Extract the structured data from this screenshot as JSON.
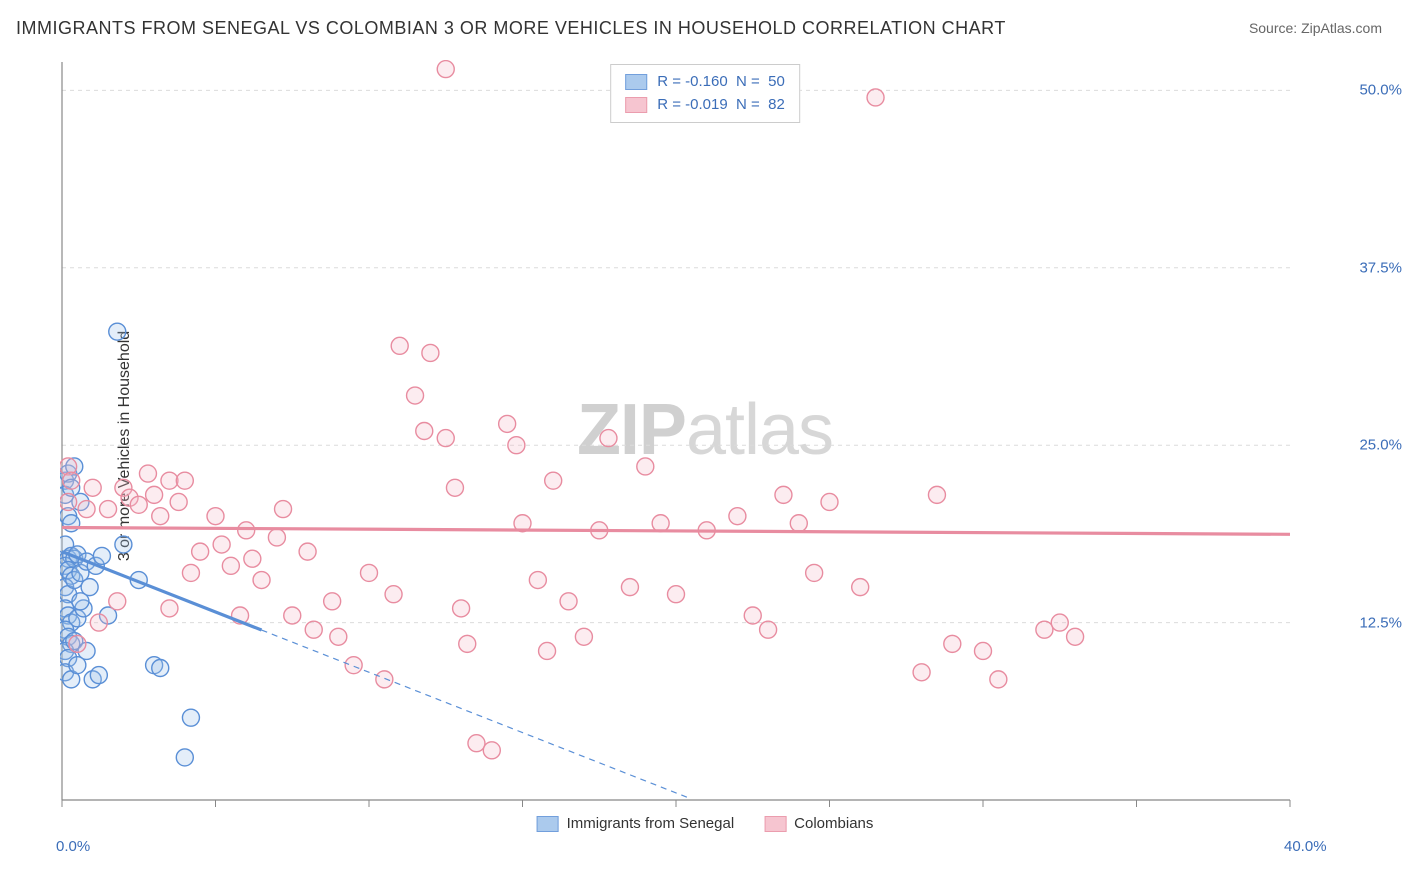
{
  "title": "IMMIGRANTS FROM SENEGAL VS COLOMBIAN 3 OR MORE VEHICLES IN HOUSEHOLD CORRELATION CHART",
  "source_prefix": "Source: ",
  "source_name": "ZipAtlas.com",
  "ylabel": "3 or more Vehicles in Household",
  "watermark": {
    "part1": "ZIP",
    "part2": "atlas"
  },
  "chart": {
    "type": "scatter",
    "xlim": [
      0,
      40
    ],
    "ylim": [
      0,
      52
    ],
    "x_ticks": [
      {
        "v": 0,
        "l": "0.0%"
      },
      {
        "v": 40,
        "l": "40.0%"
      }
    ],
    "y_ticks": [
      {
        "v": 12.5,
        "l": "12.5%"
      },
      {
        "v": 25,
        "l": "25.0%"
      },
      {
        "v": 37.5,
        "l": "37.5%"
      },
      {
        "v": 50,
        "l": "50.0%"
      }
    ],
    "grid_color": "#dcdcdc",
    "axis_color": "#888888",
    "background_color": "#ffffff",
    "marker_radius": 8.5,
    "marker_stroke_width": 1.4,
    "marker_fill_opacity": 0.28,
    "series": [
      {
        "name": "Immigrants from Senegal",
        "color_stroke": "#5a8fd6",
        "color_fill": "#9dc1ea",
        "R": "-0.160",
        "N": "50",
        "trend": {
          "solid_from_x": 0,
          "solid_to_x": 6.5,
          "y0": 17.5,
          "slope": -0.85,
          "dash_to_x": 20.5
        },
        "points": [
          [
            0.1,
            22.5
          ],
          [
            0.1,
            21.5
          ],
          [
            0.2,
            23.0
          ],
          [
            0.2,
            20.0
          ],
          [
            0.3,
            19.5
          ],
          [
            0.3,
            22.0
          ],
          [
            0.1,
            18.0
          ],
          [
            0.2,
            17.0
          ],
          [
            0.3,
            17.2
          ],
          [
            0.1,
            16.5
          ],
          [
            0.4,
            17.0
          ],
          [
            0.5,
            17.3
          ],
          [
            0.2,
            16.2
          ],
          [
            0.3,
            15.8
          ],
          [
            0.1,
            15.0
          ],
          [
            0.2,
            14.5
          ],
          [
            0.4,
            15.5
          ],
          [
            0.6,
            16.0
          ],
          [
            0.8,
            16.8
          ],
          [
            0.1,
            13.5
          ],
          [
            0.2,
            13.0
          ],
          [
            0.3,
            12.5
          ],
          [
            0.1,
            12.0
          ],
          [
            0.2,
            11.5
          ],
          [
            0.3,
            11.0
          ],
          [
            0.5,
            12.8
          ],
          [
            0.7,
            13.5
          ],
          [
            0.1,
            10.5
          ],
          [
            0.2,
            10.0
          ],
          [
            0.4,
            11.2
          ],
          [
            0.6,
            14.0
          ],
          [
            0.9,
            15.0
          ],
          [
            1.1,
            16.5
          ],
          [
            1.3,
            17.2
          ],
          [
            0.1,
            9.0
          ],
          [
            0.3,
            8.5
          ],
          [
            0.5,
            9.5
          ],
          [
            0.8,
            10.5
          ],
          [
            1.0,
            8.5
          ],
          [
            1.2,
            8.8
          ],
          [
            2.0,
            18.0
          ],
          [
            1.5,
            13.0
          ],
          [
            2.5,
            15.5
          ],
          [
            3.0,
            9.5
          ],
          [
            3.2,
            9.3
          ],
          [
            4.2,
            5.8
          ],
          [
            4.0,
            3.0
          ],
          [
            1.8,
            33.0
          ],
          [
            0.4,
            23.5
          ],
          [
            0.6,
            21.0
          ]
        ]
      },
      {
        "name": "Colombians",
        "color_stroke": "#e88ca0",
        "color_fill": "#f5bcc8",
        "R": "-0.019",
        "N": "82",
        "trend": {
          "solid_from_x": 0,
          "solid_to_x": 40,
          "y0": 19.2,
          "slope": -0.012,
          "dash_to_x": 40
        },
        "points": [
          [
            0.2,
            23.5
          ],
          [
            0.3,
            22.5
          ],
          [
            0.2,
            21.0
          ],
          [
            0.8,
            20.5
          ],
          [
            1.0,
            22.0
          ],
          [
            1.5,
            20.5
          ],
          [
            2.0,
            22.0
          ],
          [
            2.2,
            21.3
          ],
          [
            2.5,
            20.8
          ],
          [
            2.8,
            23.0
          ],
          [
            3.0,
            21.5
          ],
          [
            3.2,
            20.0
          ],
          [
            3.5,
            22.5
          ],
          [
            3.8,
            21.0
          ],
          [
            4.0,
            22.5
          ],
          [
            4.2,
            16.0
          ],
          [
            4.5,
            17.5
          ],
          [
            5.0,
            20.0
          ],
          [
            5.2,
            18.0
          ],
          [
            5.5,
            16.5
          ],
          [
            6.0,
            19.0
          ],
          [
            6.2,
            17.0
          ],
          [
            6.5,
            15.5
          ],
          [
            7.0,
            18.5
          ],
          [
            7.5,
            13.0
          ],
          [
            8.0,
            17.5
          ],
          [
            8.2,
            12.0
          ],
          [
            8.8,
            14.0
          ],
          [
            9.0,
            11.5
          ],
          [
            9.5,
            9.5
          ],
          [
            10.0,
            16.0
          ],
          [
            10.5,
            8.5
          ],
          [
            10.8,
            14.5
          ],
          [
            11.0,
            32.0
          ],
          [
            11.5,
            28.5
          ],
          [
            11.8,
            26.0
          ],
          [
            12.0,
            31.5
          ],
          [
            12.5,
            25.5
          ],
          [
            12.8,
            22.0
          ],
          [
            12.5,
            51.5
          ],
          [
            13.0,
            13.5
          ],
          [
            13.2,
            11.0
          ],
          [
            13.5,
            4.0
          ],
          [
            14.0,
            3.5
          ],
          [
            14.5,
            26.5
          ],
          [
            14.8,
            25.0
          ],
          [
            15.0,
            19.5
          ],
          [
            15.5,
            15.5
          ],
          [
            15.8,
            10.5
          ],
          [
            16.0,
            22.5
          ],
          [
            16.5,
            14.0
          ],
          [
            17.0,
            11.5
          ],
          [
            17.5,
            19.0
          ],
          [
            17.8,
            25.5
          ],
          [
            18.5,
            15.0
          ],
          [
            19.0,
            23.5
          ],
          [
            19.5,
            19.5
          ],
          [
            20.0,
            14.5
          ],
          [
            21.0,
            19.0
          ],
          [
            22.0,
            20.0
          ],
          [
            22.5,
            13.0
          ],
          [
            23.0,
            12.0
          ],
          [
            23.5,
            21.5
          ],
          [
            24.0,
            19.5
          ],
          [
            24.5,
            16.0
          ],
          [
            25.0,
            21.0
          ],
          [
            26.0,
            15.0
          ],
          [
            26.5,
            49.5
          ],
          [
            28.0,
            9.0
          ],
          [
            28.5,
            21.5
          ],
          [
            29.0,
            11.0
          ],
          [
            30.0,
            10.5
          ],
          [
            30.5,
            8.5
          ],
          [
            32.0,
            12.0
          ],
          [
            32.5,
            12.5
          ],
          [
            33.0,
            11.5
          ],
          [
            0.5,
            11.0
          ],
          [
            1.2,
            12.5
          ],
          [
            1.8,
            14.0
          ],
          [
            3.5,
            13.5
          ],
          [
            5.8,
            13.0
          ],
          [
            7.2,
            20.5
          ]
        ]
      }
    ]
  }
}
